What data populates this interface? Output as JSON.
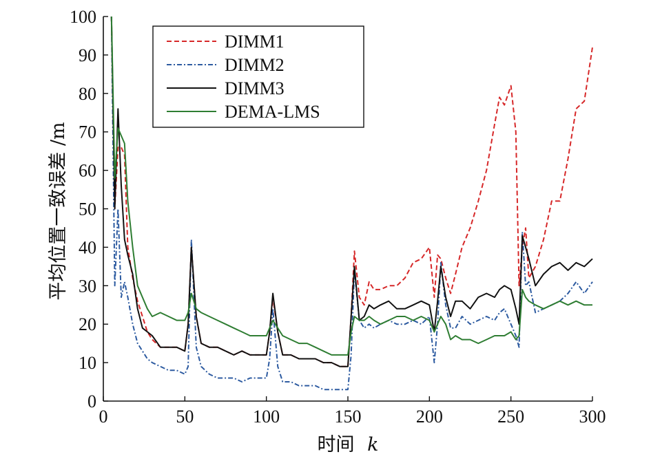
{
  "chart_data": {
    "type": "line",
    "xlabel": "时间",
    "xlabel_var": "k",
    "ylabel": "平均位置一致误差 /m",
    "xlim": [
      0,
      300
    ],
    "ylim": [
      0,
      100
    ],
    "xticks": [
      0,
      50,
      100,
      150,
      200,
      250,
      300
    ],
    "yticks": [
      0,
      10,
      20,
      30,
      40,
      50,
      60,
      70,
      80,
      90,
      100
    ],
    "grid": false,
    "legend_position": "top-left",
    "series": [
      {
        "name": "DIMM1",
        "color": "#d62728",
        "dash": "dashed",
        "x": [
          5,
          7,
          9,
          11,
          13,
          15,
          18,
          21,
          24,
          27,
          30,
          35,
          40,
          45,
          50,
          52,
          54,
          57,
          60,
          65,
          70,
          75,
          80,
          85,
          90,
          95,
          100,
          102,
          104,
          107,
          110,
          115,
          120,
          125,
          130,
          135,
          140,
          145,
          150,
          152,
          154,
          157,
          160,
          163,
          166,
          170,
          175,
          180,
          185,
          190,
          195,
          200,
          203,
          205,
          207,
          210,
          213,
          216,
          220,
          225,
          230,
          235,
          240,
          243,
          246,
          250,
          253,
          255,
          257,
          259,
          261,
          265,
          270,
          275,
          280,
          285,
          290,
          295,
          300
        ],
        "y": [
          100,
          50,
          66,
          66,
          64,
          40,
          32,
          26,
          22,
          18,
          16,
          14,
          14,
          14,
          13,
          20,
          40,
          22,
          15,
          14,
          14,
          13,
          12,
          13,
          12,
          12,
          12,
          18,
          27,
          18,
          12,
          12,
          11,
          11,
          11,
          10,
          10,
          9,
          9,
          22,
          39,
          27,
          25,
          31,
          29,
          29,
          30,
          30,
          32,
          36,
          37,
          40,
          27,
          38,
          37,
          32,
          28,
          33,
          40,
          45,
          52,
          60,
          72,
          79,
          77,
          82,
          70,
          30,
          40,
          45,
          32,
          35,
          42,
          52,
          52,
          63,
          76,
          78,
          92
        ]
      },
      {
        "name": "DIMM2",
        "color": "#2c5aa0",
        "dash": "dashdot",
        "x": [
          5,
          7,
          9,
          11,
          13,
          15,
          18,
          21,
          24,
          27,
          30,
          35,
          40,
          45,
          50,
          52,
          54,
          57,
          60,
          65,
          70,
          75,
          80,
          85,
          90,
          95,
          100,
          102,
          104,
          107,
          110,
          115,
          120,
          125,
          130,
          135,
          140,
          145,
          150,
          152,
          154,
          157,
          160,
          163,
          166,
          170,
          175,
          180,
          185,
          190,
          195,
          200,
          203,
          205,
          207,
          210,
          213,
          216,
          220,
          225,
          230,
          235,
          240,
          243,
          246,
          250,
          253,
          255,
          257,
          259,
          261,
          265,
          270,
          275,
          280,
          285,
          290,
          295,
          300
        ],
        "y": [
          100,
          30,
          50,
          27,
          31,
          27,
          20,
          15,
          13,
          11,
          10,
          9,
          8,
          8,
          7,
          9,
          42,
          14,
          9,
          7,
          6,
          6,
          6,
          5,
          6,
          6,
          6,
          11,
          24,
          9,
          5,
          5,
          4,
          4,
          4,
          3,
          3,
          3,
          3,
          12,
          34,
          21,
          19,
          20,
          19,
          20,
          21,
          20,
          20,
          21,
          20,
          22,
          10,
          20,
          36,
          25,
          19,
          19,
          22,
          20,
          21,
          22,
          21,
          23,
          24,
          20,
          17,
          14,
          44,
          30,
          31,
          23,
          24,
          25,
          26,
          28,
          31,
          28,
          31
        ]
      },
      {
        "name": "DIMM3",
        "color": "#111111",
        "dash": "solid",
        "x": [
          5,
          7,
          9,
          11,
          13,
          15,
          18,
          21,
          24,
          27,
          30,
          35,
          40,
          45,
          50,
          52,
          54,
          57,
          60,
          65,
          70,
          75,
          80,
          85,
          90,
          95,
          100,
          102,
          104,
          107,
          110,
          115,
          120,
          125,
          130,
          135,
          140,
          145,
          150,
          152,
          154,
          157,
          160,
          163,
          166,
          170,
          175,
          180,
          185,
          190,
          195,
          200,
          203,
          205,
          207,
          210,
          213,
          216,
          220,
          225,
          230,
          235,
          240,
          243,
          246,
          250,
          253,
          255,
          257,
          259,
          261,
          265,
          270,
          275,
          280,
          285,
          290,
          295,
          300
        ],
        "y": [
          100,
          50,
          76,
          56,
          42,
          38,
          33,
          24,
          19,
          18,
          17,
          14,
          14,
          14,
          13,
          20,
          40,
          22,
          15,
          14,
          14,
          13,
          12,
          13,
          12,
          12,
          12,
          18,
          28,
          18,
          12,
          12,
          11,
          11,
          11,
          10,
          10,
          9,
          9,
          22,
          35,
          21,
          22,
          25,
          24,
          25,
          26,
          24,
          24,
          25,
          26,
          25,
          18,
          26,
          35,
          27,
          22,
          26,
          26,
          24,
          27,
          28,
          27,
          29,
          30,
          29,
          24,
          20,
          43,
          40,
          37,
          30,
          33,
          35,
          36,
          34,
          36,
          35,
          37
        ]
      },
      {
        "name": "DEMA-LMS",
        "color": "#2e7d32",
        "dash": "solid",
        "x": [
          5,
          7,
          9,
          11,
          13,
          15,
          18,
          21,
          24,
          27,
          30,
          35,
          40,
          45,
          50,
          52,
          54,
          57,
          60,
          65,
          70,
          75,
          80,
          85,
          90,
          95,
          100,
          102,
          104,
          107,
          110,
          115,
          120,
          125,
          130,
          135,
          140,
          145,
          150,
          152,
          154,
          157,
          160,
          163,
          166,
          170,
          175,
          180,
          185,
          190,
          195,
          200,
          203,
          205,
          207,
          210,
          213,
          216,
          220,
          225,
          230,
          235,
          240,
          243,
          246,
          250,
          253,
          255,
          257,
          259,
          261,
          265,
          270,
          275,
          280,
          285,
          290,
          295,
          300
        ],
        "y": [
          100,
          58,
          71,
          69,
          67,
          52,
          40,
          30,
          27,
          24,
          22,
          23,
          22,
          21,
          21,
          23,
          28,
          24,
          23,
          22,
          21,
          20,
          19,
          18,
          17,
          17,
          17,
          19,
          21,
          19,
          17,
          16,
          15,
          15,
          14,
          13,
          12,
          12,
          12,
          18,
          22,
          21,
          21,
          22,
          21,
          20,
          21,
          22,
          22,
          21,
          22,
          21,
          18,
          20,
          22,
          20,
          16,
          17,
          16,
          16,
          15,
          16,
          17,
          17,
          17,
          18,
          16,
          17,
          29,
          27,
          26,
          25,
          24,
          25,
          26,
          25,
          26,
          25,
          25
        ]
      }
    ]
  }
}
